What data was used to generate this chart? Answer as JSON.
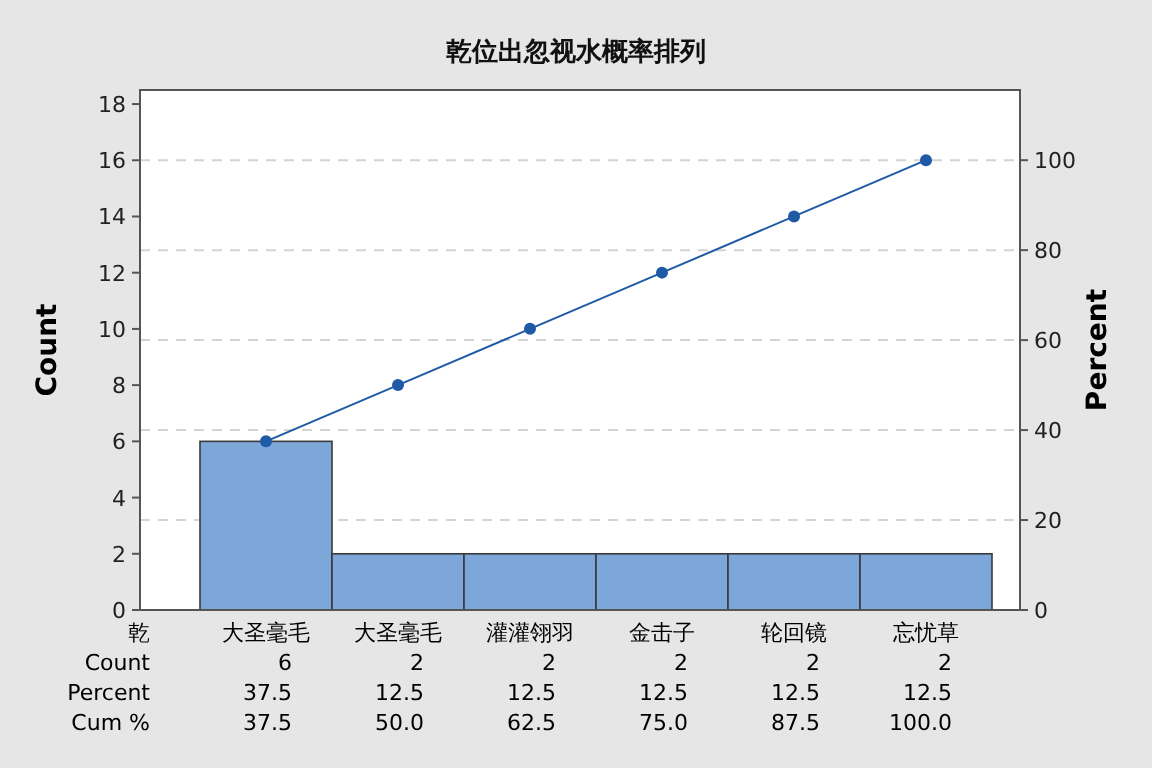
{
  "chart_data": {
    "type": "bar",
    "title": "乾位出忽视水概率排列",
    "xlabel": "乾",
    "ylabel": "Count",
    "y2label": "Percent",
    "categories": [
      "大圣毫毛",
      "大圣毫毛",
      "灌灌翎羽",
      "金击子",
      "轮回镜",
      "忘忧草"
    ],
    "series": [
      {
        "name": "Count",
        "color": "#7da7d9",
        "values": [
          6,
          2,
          2,
          2,
          2,
          2
        ],
        "value_labels": [
          "6",
          "2",
          "2",
          "2",
          "2",
          "2"
        ]
      },
      {
        "type": "line",
        "axis": "y2",
        "color": "#1f5aa6",
        "values": [
          37.5,
          50,
          62.5,
          75,
          87.5,
          100
        ],
        "value_labels": [
          "37.5",
          "50.0",
          "62.5",
          "75.0",
          "87.5",
          "100.0"
        ]
      }
    ],
    "ylim": [
      0,
      18.5
    ],
    "yticks": [
      0,
      2,
      4,
      6,
      8,
      10,
      12,
      14,
      16,
      18
    ],
    "y2lim": [
      0,
      115.6
    ],
    "y2ticks": [
      0,
      20,
      40,
      60,
      80,
      100
    ],
    "grid": "y2",
    "marker": "circle",
    "line_style": "solid",
    "annotations": [
      "Percent",
      "37.5",
      "12.5",
      "12.5",
      "12.5",
      "12.5",
      "12.5",
      "Cum %"
    ]
  }
}
